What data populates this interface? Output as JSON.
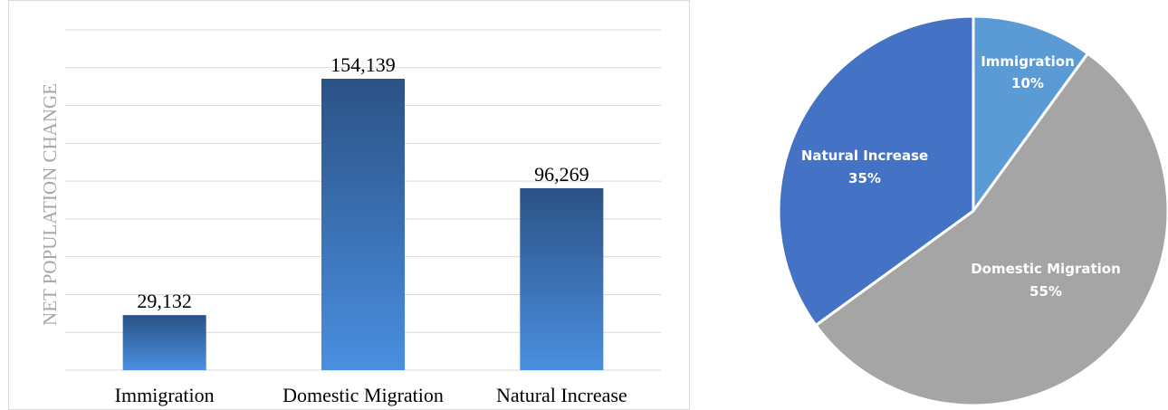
{
  "chart_data": [
    {
      "type": "bar",
      "categories": [
        "Immigration",
        "Domestic Migration",
        "Natural Increase"
      ],
      "values": [
        29132,
        154139,
        96269
      ],
      "value_labels": [
        "29,132",
        "154,139",
        "96,269"
      ],
      "title": "",
      "xlabel": "",
      "ylabel": "NET POPULATION CHANGE",
      "ylim": [
        0,
        180000
      ],
      "grid": true,
      "colors": {
        "bar_top": "#2b5286",
        "bar_bottom": "#4a8fe0",
        "grid": "#d9d9d9",
        "frame": "#d9d9d9"
      }
    },
    {
      "type": "pie",
      "categories": [
        "Immigration",
        "Domestic Migration",
        "Natural Increase"
      ],
      "values": [
        10,
        55,
        35
      ],
      "percent_labels": [
        "10%",
        "55%",
        "35%"
      ],
      "colors": [
        "#5b9bd5",
        "#a5a5a5",
        "#4472c4"
      ],
      "label_color": "#ffffff"
    }
  ]
}
